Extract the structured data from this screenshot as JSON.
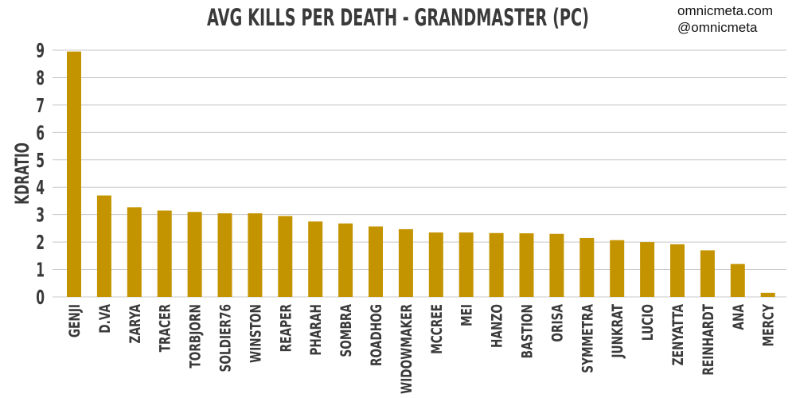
{
  "watermark": {
    "line1": "omnicmeta.com",
    "line2": "@omnicmeta"
  },
  "colors": {
    "bar": "#c49400",
    "grid": "#c8c8c8",
    "text": "#3a3a3a"
  },
  "chart_data": {
    "type": "bar",
    "title": "AVG KILLS PER DEATH - GRANDMASTER (PC)",
    "xlabel": "",
    "ylabel": "KDRATIO",
    "ylim": [
      0,
      9
    ],
    "yticks": [
      0,
      1,
      2,
      3,
      4,
      5,
      6,
      7,
      8,
      9
    ],
    "grid": true,
    "categories": [
      "GENJI",
      "D.VA",
      "ZARYA",
      "TRACER",
      "TORBJORN",
      "SOLDIER76",
      "WINSTON",
      "REAPER",
      "PHARAH",
      "SOMBRA",
      "ROADHOG",
      "WIDOWMAKER",
      "MCCREE",
      "MEI",
      "HANZO",
      "BASTION",
      "ORISA",
      "SYMMETRA",
      "JUNKRAT",
      "LUCIO",
      "ZENYATTA",
      "REINHARDT",
      "ANA",
      "MERCY"
    ],
    "values": [
      8.95,
      3.7,
      3.27,
      3.15,
      3.1,
      3.05,
      3.05,
      2.95,
      2.75,
      2.68,
      2.57,
      2.47,
      2.35,
      2.35,
      2.33,
      2.32,
      2.3,
      2.15,
      2.07,
      2.0,
      1.92,
      1.7,
      1.2,
      0.15
    ]
  }
}
